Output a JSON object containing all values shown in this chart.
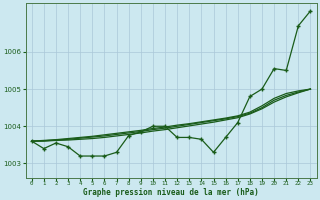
{
  "title": "Graphe pression niveau de la mer (hPa)",
  "bg_color": "#cce8f0",
  "grid_color": "#aac8d8",
  "line_color": "#1a5c1a",
  "x_labels": [
    "0",
    "1",
    "2",
    "3",
    "4",
    "5",
    "6",
    "7",
    "8",
    "9",
    "10",
    "11",
    "12",
    "13",
    "14",
    "15",
    "16",
    "17",
    "18",
    "19",
    "20",
    "21",
    "22",
    "23"
  ],
  "xlim": [
    -0.5,
    23.5
  ],
  "ylim": [
    1002.6,
    1007.3
  ],
  "yticks": [
    1003,
    1004,
    1005,
    1006
  ],
  "series": {
    "main": [
      1003.6,
      1003.4,
      1003.55,
      1003.45,
      1003.2,
      1003.2,
      1003.2,
      1003.3,
      1003.75,
      1003.85,
      1004.0,
      1004.0,
      1003.7,
      1003.7,
      1003.65,
      1003.3,
      1003.7,
      1004.1,
      1004.8,
      1005.0,
      1005.55,
      1005.5,
      1006.7,
      1007.1
    ],
    "smooth1": [
      1003.6,
      1003.62,
      1003.64,
      1003.67,
      1003.7,
      1003.73,
      1003.77,
      1003.81,
      1003.85,
      1003.89,
      1003.94,
      1003.98,
      1004.03,
      1004.07,
      1004.12,
      1004.17,
      1004.22,
      1004.28,
      1004.38,
      1004.55,
      1004.75,
      1004.88,
      1004.95,
      1005.0
    ],
    "smooth2": [
      1003.6,
      1003.61,
      1003.63,
      1003.65,
      1003.68,
      1003.71,
      1003.74,
      1003.78,
      1003.82,
      1003.86,
      1003.91,
      1003.95,
      1004.0,
      1004.05,
      1004.1,
      1004.15,
      1004.2,
      1004.26,
      1004.35,
      1004.5,
      1004.7,
      1004.83,
      1004.92,
      1005.0
    ],
    "smooth3": [
      1003.6,
      1003.6,
      1003.62,
      1003.63,
      1003.65,
      1003.67,
      1003.7,
      1003.74,
      1003.78,
      1003.82,
      1003.87,
      1003.91,
      1003.96,
      1004.01,
      1004.06,
      1004.11,
      1004.17,
      1004.23,
      1004.33,
      1004.47,
      1004.65,
      1004.79,
      1004.9,
      1005.0
    ]
  }
}
